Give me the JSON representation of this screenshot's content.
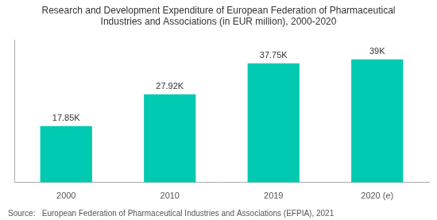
{
  "chart_data": {
    "type": "bar",
    "title": "Research and Development Expenditure of European Federation of Pharmaceutical\nIndustries and Associations (in EUR million), 2000-2020",
    "annotations": [
      "Source:   European Federation of Pharmaceutical Industries and Associations (EFPIA), 2021"
    ],
    "categories": [
      "2000",
      "2010",
      "2019",
      "2020 (e)"
    ],
    "values": [
      17.85,
      27.92,
      37.75,
      39.0
    ],
    "value_labels": [
      "17.85K",
      "27.92K",
      "37.75K",
      "39K"
    ],
    "color": "#00C9B1",
    "ylim": [
      0,
      45
    ],
    "grid": false,
    "data_labels": true,
    "tick_labels": "x"
  }
}
